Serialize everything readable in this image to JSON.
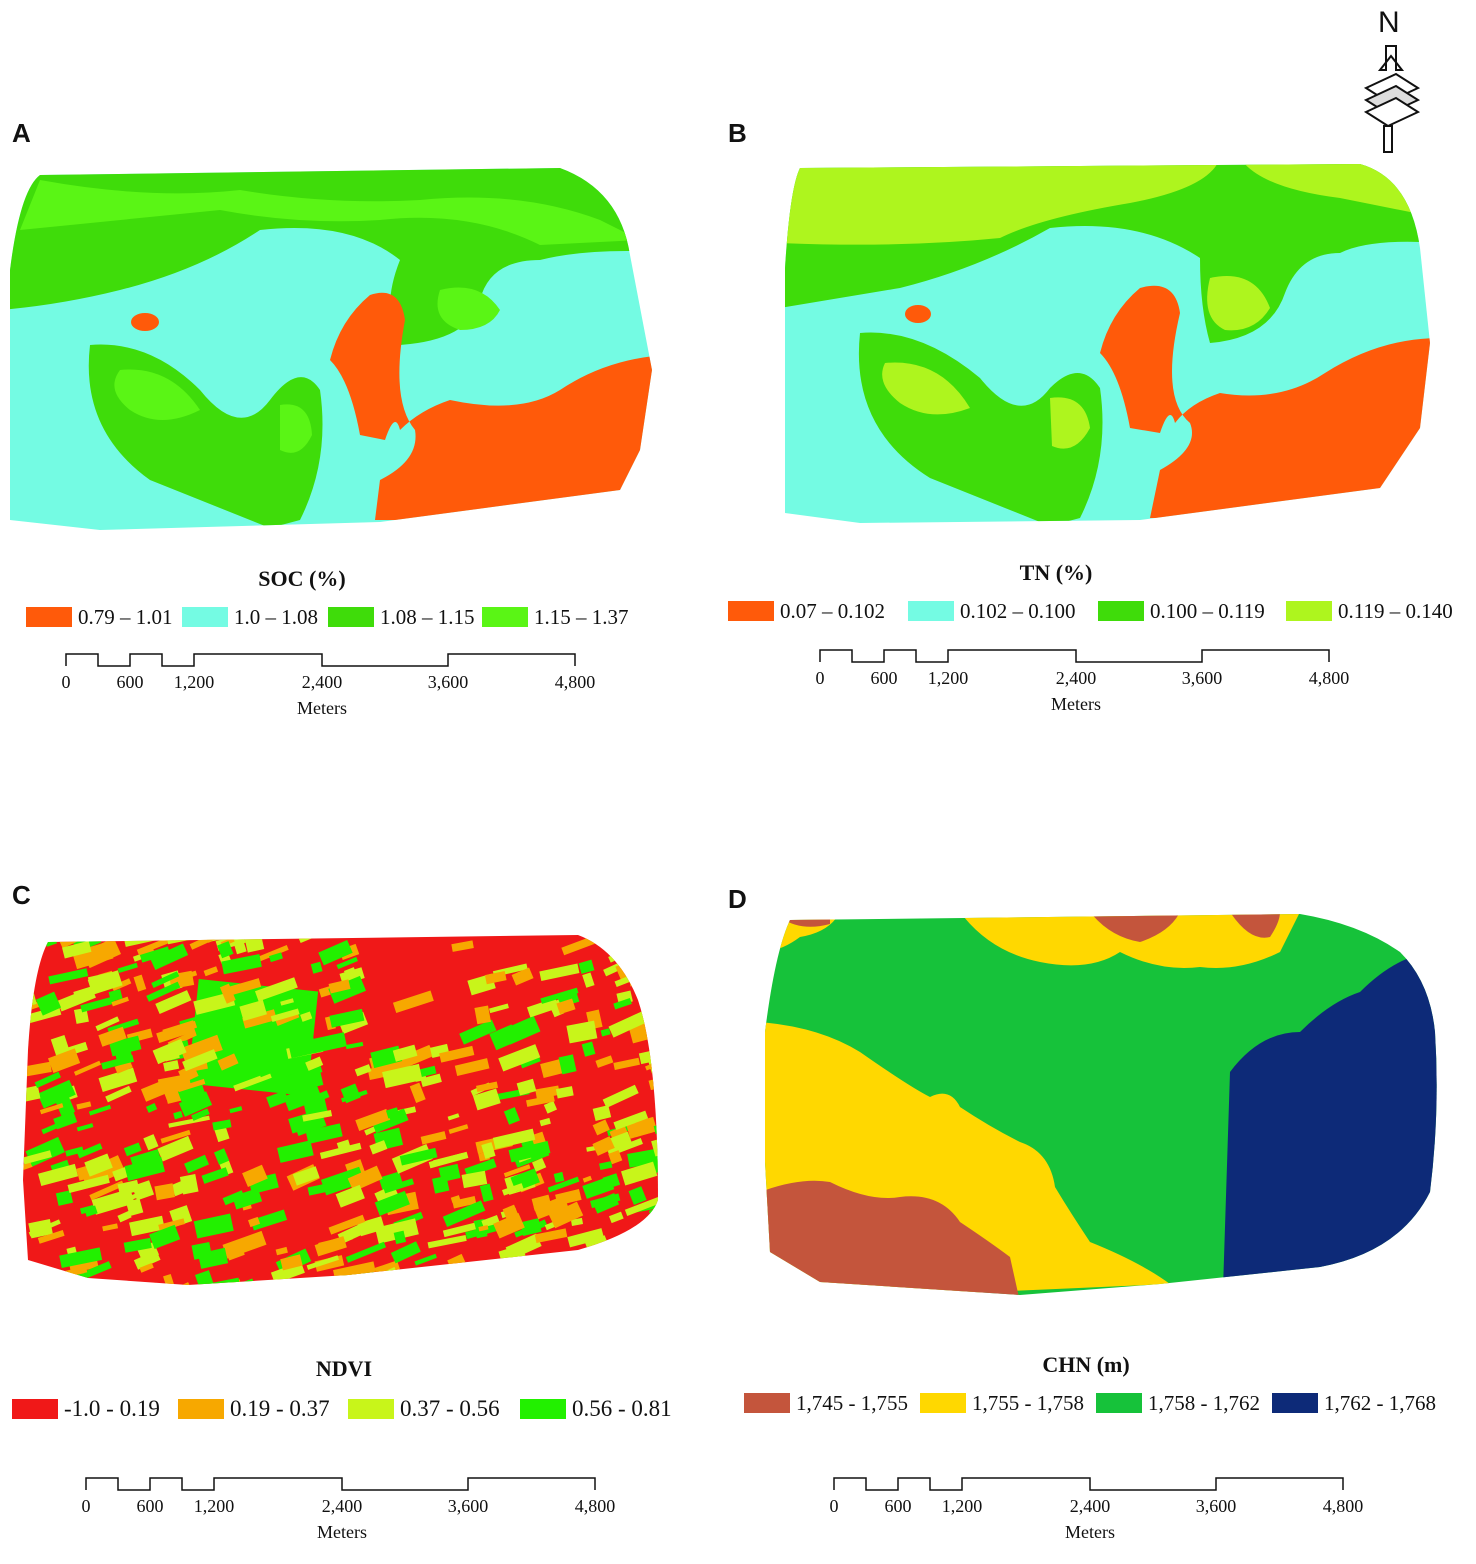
{
  "north_label": "N",
  "panels": {
    "A": {
      "letter": "A",
      "title": "SOC (%)",
      "legend": [
        {
          "label": "0.79 – 1.01",
          "color": "#ff5a0a"
        },
        {
          "label": "1.0 – 1.08",
          "color": "#74fbe3"
        },
        {
          "label": "1.08 – 1.15",
          "color": "#3fdc0a"
        },
        {
          "label": "1.15 – 1.37",
          "color": "#5af515"
        }
      ]
    },
    "B": {
      "letter": "B",
      "title": "TN (%)",
      "legend": [
        {
          "label": "0.07 – 0.102",
          "color": "#ff5a0a"
        },
        {
          "label": "0.102 – 0.100",
          "color": "#74fbe3"
        },
        {
          "label": "0.100 – 0.119",
          "color": "#3fdc0a"
        },
        {
          "label": "0.119 – 0.140",
          "color": "#aef51e"
        }
      ]
    },
    "C": {
      "letter": "C",
      "title": "NDVI",
      "legend": [
        {
          "label": "-1.0 - 0.19",
          "color": "#f01818"
        },
        {
          "label": "0.19 - 0.37",
          "color": "#f7a800"
        },
        {
          "label": "0.37 - 0.56",
          "color": "#c8f51a"
        },
        {
          "label": "0.56 - 0.81",
          "color": "#22f000"
        }
      ]
    },
    "D": {
      "letter": "D",
      "title": "CHN (m)",
      "legend": [
        {
          "label": "1,745 - 1,755",
          "color": "#c4553c"
        },
        {
          "label": "1,755 - 1,758",
          "color": "#ffd800"
        },
        {
          "label": "1,758 - 1,762",
          "color": "#16c23a"
        },
        {
          "label": "1,762 - 1,768",
          "color": "#0d2a78"
        }
      ]
    }
  },
  "scalebar": {
    "ticks": [
      "0",
      "600",
      "1,200",
      "2,400",
      "3,600",
      "4,800"
    ],
    "unit": "Meters"
  }
}
